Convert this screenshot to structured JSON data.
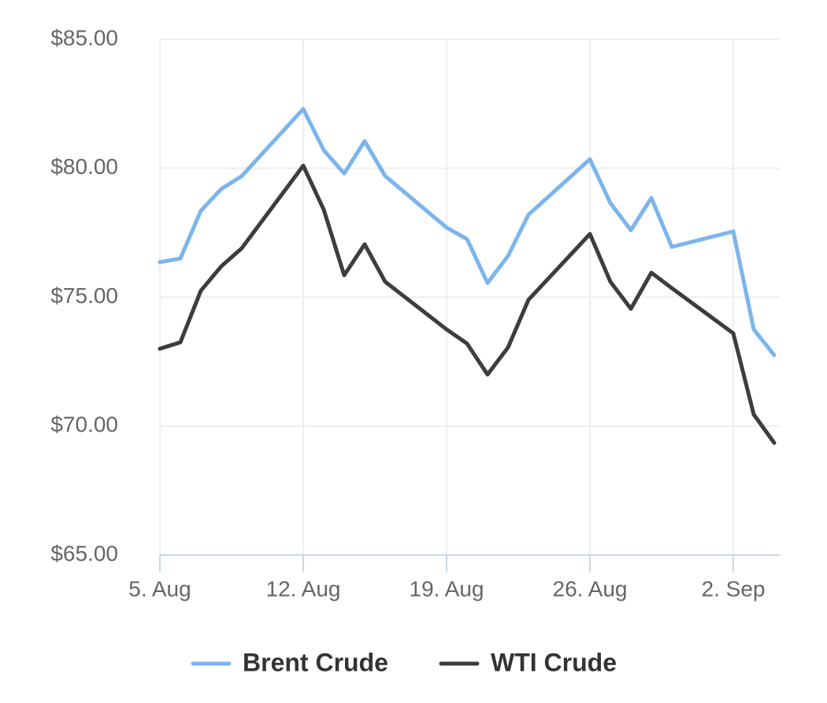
{
  "chart_data": {
    "type": "line",
    "x": [
      "08-05",
      "08-06",
      "08-07",
      "08-08",
      "08-09",
      "08-12",
      "08-13",
      "08-14",
      "08-15",
      "08-16",
      "08-19",
      "08-20",
      "08-21",
      "08-22",
      "08-23",
      "08-26",
      "08-27",
      "08-28",
      "08-29",
      "08-30",
      "09-02",
      "09-03",
      "09-04"
    ],
    "series": [
      {
        "name": "Brent Crude",
        "color": "#7cb5ec",
        "values": [
          76.36,
          76.5,
          78.35,
          79.2,
          79.7,
          82.3,
          80.7,
          79.8,
          81.05,
          79.7,
          77.7,
          77.25,
          75.55,
          76.6,
          78.2,
          80.35,
          78.65,
          77.6,
          78.85,
          76.95,
          77.55,
          73.75,
          72.75
        ]
      },
      {
        "name": "WTI Crude",
        "color": "#3d3d40",
        "values": [
          73.0,
          73.25,
          75.25,
          76.2,
          76.9,
          80.1,
          78.4,
          75.85,
          77.05,
          75.6,
          73.75,
          73.2,
          72.0,
          73.05,
          74.9,
          77.45,
          75.6,
          74.55,
          75.95,
          75.35,
          73.6,
          70.45,
          69.35
        ]
      }
    ],
    "xlim": [
      "08-05",
      "09-04"
    ],
    "xticks": [
      {
        "value": "08-05",
        "label": "5. Aug"
      },
      {
        "value": "08-12",
        "label": "12. Aug"
      },
      {
        "value": "08-19",
        "label": "19. Aug"
      },
      {
        "value": "08-26",
        "label": "26. Aug"
      },
      {
        "value": "09-02",
        "label": "2. Sep"
      }
    ],
    "ylim": [
      65,
      85
    ],
    "yticks": [
      {
        "value": 65,
        "label": "$65.00"
      },
      {
        "value": 70,
        "label": "$70.00"
      },
      {
        "value": 75,
        "label": "$75.00"
      },
      {
        "value": 80,
        "label": "$80.00"
      },
      {
        "value": 85,
        "label": "$85.00"
      }
    ],
    "grid": true
  }
}
